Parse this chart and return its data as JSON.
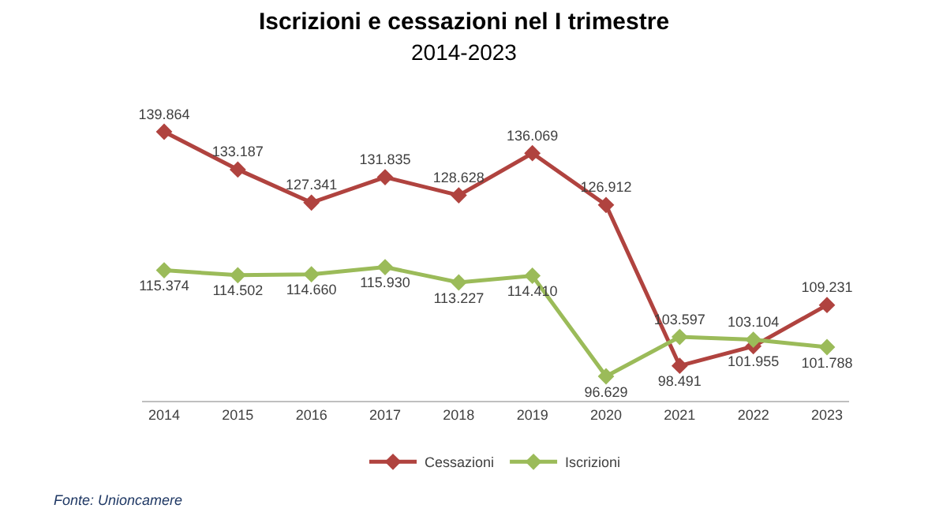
{
  "chart_data": {
    "type": "line",
    "title": "Iscrizioni e cessazioni nel I trimestre",
    "subtitle": "2014-2023",
    "categories": [
      "2014",
      "2015",
      "2016",
      "2017",
      "2018",
      "2019",
      "2020",
      "2021",
      "2022",
      "2023"
    ],
    "series": [
      {
        "name": "Cessazioni",
        "color": "#b0433f",
        "values": [
          139864,
          133187,
          127341,
          131835,
          128628,
          136069,
          126912,
          98491,
          101955,
          109231
        ],
        "value_labels": [
          "139.864",
          "133.187",
          "127.341",
          "131.835",
          "128.628",
          "136.069",
          "126.912",
          "98.491",
          "101.955",
          "109.231"
        ]
      },
      {
        "name": "Iscrizioni",
        "color": "#9bbb59",
        "values": [
          115374,
          114502,
          114660,
          115930,
          113227,
          114410,
          96629,
          103597,
          103104,
          101788
        ],
        "value_labels": [
          "115.374",
          "114.502",
          "114.660",
          "115.930",
          "113.227",
          "114.410",
          "96.629",
          "103.597",
          "103.104",
          "101.788"
        ]
      }
    ],
    "marker": "diamond",
    "line_style": "solid",
    "legend": "bottom",
    "tick_labels": "x",
    "annotations": [
      "Fonte: Unioncamere"
    ]
  }
}
